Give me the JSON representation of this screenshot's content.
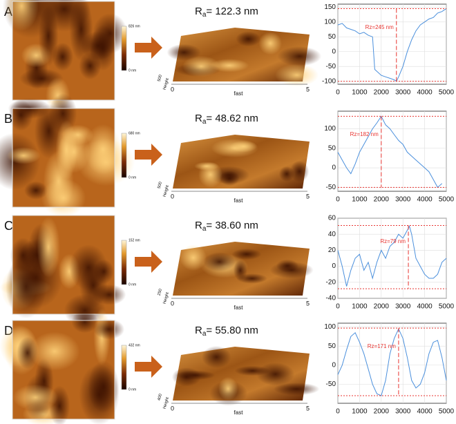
{
  "panels": [
    {
      "label": "A",
      "cbar_top": "826 nm",
      "cbar_bottom": "0 nm",
      "ra_symbol": "R",
      "ra_sub": "a",
      "ra_text": "= 122.3 nm",
      "axis_fast": "fast",
      "axis_height": "Height",
      "axis_height_tick": "500",
      "axis_x0": "0",
      "axis_x1": "5"
    },
    {
      "label": "B",
      "cbar_top": "680 nm",
      "cbar_bottom": "0 nm",
      "ra_symbol": "R",
      "ra_sub": "a",
      "ra_text": "= 48.62 nm",
      "axis_fast": "fast",
      "axis_height": "Height",
      "axis_height_tick": "500",
      "axis_x0": "0",
      "axis_x1": "5"
    },
    {
      "label": "C",
      "cbar_top": "152 nm",
      "cbar_bottom": "0 nm",
      "ra_symbol": "R",
      "ra_sub": "a",
      "ra_text": "= 38.60 nm",
      "axis_fast": "fast",
      "axis_height": "Height",
      "axis_height_tick": "250",
      "axis_x0": "0",
      "axis_x1": "5"
    },
    {
      "label": "D",
      "cbar_top": "432 nm",
      "cbar_bottom": "0 nm",
      "ra_symbol": "R",
      "ra_sub": "a",
      "ra_text": "= 55.80 nm",
      "axis_fast": "fast",
      "axis_height": "Height",
      "axis_height_tick": "400",
      "axis_x0": "0",
      "axis_x1": "5"
    }
  ],
  "chart_data": [
    {
      "type": "line",
      "color": "#4a8fdc",
      "ref_color": "#e8332f",
      "grid": true,
      "annotation": "Rz=245 nm",
      "x": [
        0,
        200,
        400,
        600,
        800,
        1000,
        1200,
        1400,
        1600,
        1700,
        2000,
        2200,
        2400,
        2600,
        2700,
        2800,
        3000,
        3200,
        3400,
        3600,
        3800,
        4000,
        4200,
        4400,
        4600,
        4800,
        5000
      ],
      "values": [
        90,
        95,
        80,
        75,
        70,
        60,
        65,
        55,
        50,
        -60,
        -80,
        -85,
        -90,
        -95,
        -100,
        -85,
        -50,
        0,
        40,
        70,
        90,
        100,
        110,
        115,
        130,
        135,
        145
      ],
      "ref_lines": [
        145,
        -100
      ],
      "rz_x": 2700,
      "xlim": [
        0,
        5000
      ],
      "xticks": [
        0,
        1000,
        2000,
        3000,
        4000,
        5000
      ],
      "ylim": [
        -110,
        160
      ],
      "yticks": [
        -100,
        -50,
        0,
        50,
        100,
        150
      ]
    },
    {
      "type": "line",
      "color": "#4a8fdc",
      "ref_color": "#e8332f",
      "grid": true,
      "annotation": "Rz=182 nm",
      "x": [
        0,
        200,
        400,
        600,
        800,
        1000,
        1200,
        1400,
        1600,
        1800,
        2000,
        2200,
        2400,
        2600,
        2800,
        3000,
        3200,
        3400,
        3600,
        3800,
        4000,
        4200,
        4400,
        4600,
        4800
      ],
      "values": [
        40,
        20,
        0,
        -15,
        10,
        40,
        60,
        80,
        100,
        115,
        132,
        110,
        100,
        85,
        70,
        60,
        40,
        30,
        20,
        10,
        0,
        -10,
        -30,
        -50,
        -40
      ],
      "ref_lines": [
        132,
        -50
      ],
      "rz_x": 2000,
      "xlim": [
        0,
        5000
      ],
      "xticks": [
        0,
        1000,
        2000,
        3000,
        4000,
        5000
      ],
      "ylim": [
        -60,
        145
      ],
      "yticks": [
        -50,
        0,
        50,
        100
      ]
    },
    {
      "type": "line",
      "color": "#4a8fdc",
      "ref_color": "#e8332f",
      "grid": true,
      "annotation": "Rz=79 nm",
      "x": [
        0,
        200,
        400,
        600,
        800,
        1000,
        1200,
        1400,
        1600,
        1800,
        2000,
        2200,
        2400,
        2600,
        2800,
        3000,
        3200,
        3300,
        3400,
        3600,
        3800,
        4000,
        4200,
        4400,
        4600,
        4800,
        5000
      ],
      "values": [
        20,
        0,
        -25,
        -5,
        10,
        15,
        -5,
        5,
        -15,
        5,
        20,
        10,
        25,
        30,
        40,
        35,
        45,
        50,
        40,
        10,
        0,
        -10,
        -15,
        -15,
        -10,
        5,
        10
      ],
      "ref_lines": [
        51,
        -28
      ],
      "rz_x": 3250,
      "xlim": [
        0,
        5000
      ],
      "xticks": [
        0,
        1000,
        2000,
        3000,
        4000,
        5000
      ],
      "ylim": [
        -40,
        60
      ],
      "yticks": [
        -40,
        -20,
        0,
        20,
        40,
        60
      ]
    },
    {
      "type": "line",
      "color": "#4a8fdc",
      "ref_color": "#e8332f",
      "grid": true,
      "annotation": "Rz=171 nm",
      "x": [
        0,
        200,
        400,
        600,
        800,
        1000,
        1200,
        1400,
        1600,
        1800,
        2000,
        2200,
        2400,
        2600,
        2800,
        3000,
        3200,
        3400,
        3600,
        3800,
        4000,
        4200,
        4400,
        4600,
        4800,
        5000
      ],
      "values": [
        -25,
        0,
        40,
        75,
        85,
        60,
        30,
        -10,
        -50,
        -75,
        -80,
        -40,
        30,
        70,
        95,
        70,
        20,
        -40,
        -60,
        -50,
        -20,
        30,
        60,
        65,
        20,
        -40
      ],
      "ref_lines": [
        97,
        -80
      ],
      "rz_x": 2800,
      "xlim": [
        0,
        5000
      ],
      "xticks": [
        0,
        1000,
        2000,
        3000,
        4000,
        5000
      ],
      "ylim": [
        -100,
        110
      ],
      "yticks": [
        -50,
        0,
        50,
        100
      ]
    }
  ]
}
